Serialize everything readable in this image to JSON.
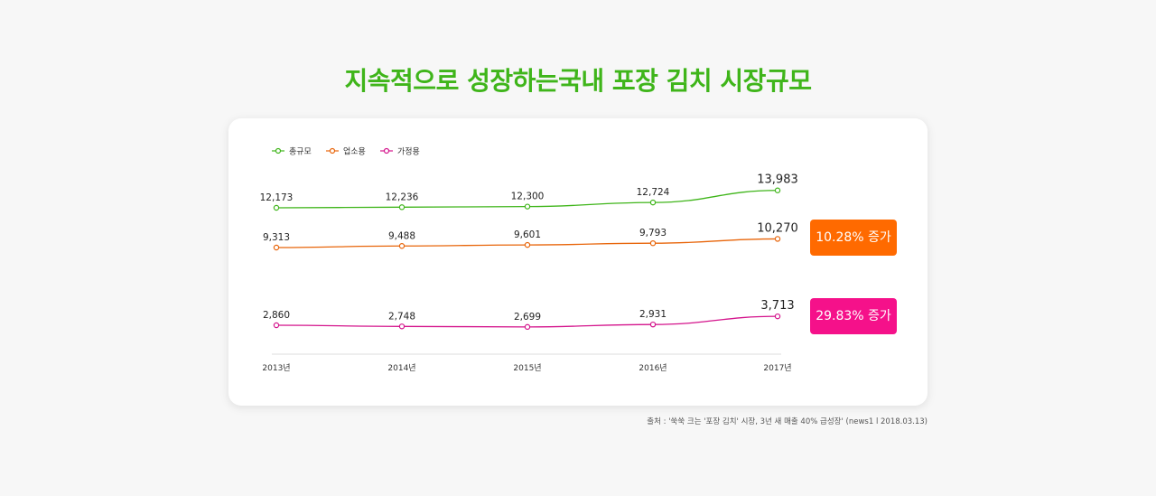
{
  "title": "지속적으로 성장하는국내 포장 김치 시장규모",
  "chart_data": {
    "type": "line",
    "categories": [
      "2013년",
      "2014년",
      "2015년",
      "2016년",
      "2017년"
    ],
    "series": [
      {
        "name": "총규모",
        "color": "#3fb51a",
        "values": [
          12173,
          12236,
          12300,
          12724,
          13983
        ],
        "labels": [
          "12,173",
          "12,236",
          "12,300",
          "12,724",
          "13,983"
        ]
      },
      {
        "name": "업소용",
        "color": "#e8650a",
        "values": [
          9313,
          9488,
          9601,
          9793,
          10270
        ],
        "labels": [
          "9,313",
          "9,488",
          "9,601",
          "9,793",
          "10,270"
        ]
      },
      {
        "name": "가정용",
        "color": "#d4148c",
        "values": [
          2860,
          2748,
          2699,
          2931,
          3713
        ],
        "labels": [
          "2,860",
          "2,748",
          "2,699",
          "2,931",
          "3,713"
        ]
      }
    ],
    "legend_position": "top-left"
  },
  "badges": {
    "business": {
      "text": "10.28% 증가",
      "color": "#ff6a00"
    },
    "home": {
      "text": "29.83% 증가",
      "color": "#f5118a"
    }
  },
  "source": "출처 : '쑥쑥 크는 '포장 김치' 시장, 3년 새 매출 40% 급성장' (news1 l 2018.03.13)"
}
